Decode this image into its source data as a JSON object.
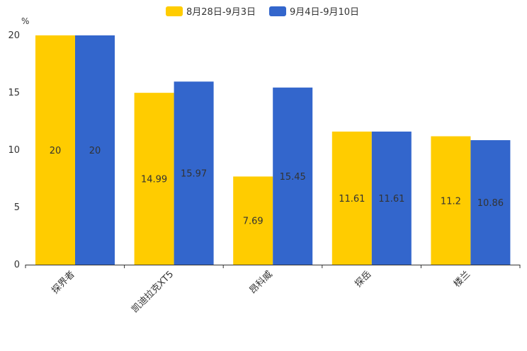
{
  "chart_data": {
    "type": "bar",
    "title": "",
    "xlabel": "",
    "ylabel": "%",
    "ylim": [
      0,
      20
    ],
    "yticks": [
      0,
      5,
      10,
      15,
      20
    ],
    "categories": [
      "探界者",
      "凯迪拉克XT5",
      "昂科威",
      "探岳",
      "楼兰"
    ],
    "series": [
      {
        "name": "8月28日-9月3日",
        "color": "#FFCC00",
        "values": [
          20,
          14.99,
          7.69,
          11.61,
          11.2
        ],
        "labels": [
          "20",
          "14.99",
          "7.69",
          "11.61",
          "11.2"
        ]
      },
      {
        "name": "9月4日-9月10日",
        "color": "#3366CC",
        "values": [
          20,
          15.97,
          15.45,
          11.61,
          10.86
        ],
        "labels": [
          "20",
          "15.97",
          "15.45",
          "11.61",
          "10.86"
        ]
      }
    ],
    "legend_position": "top-center",
    "grid": false
  }
}
